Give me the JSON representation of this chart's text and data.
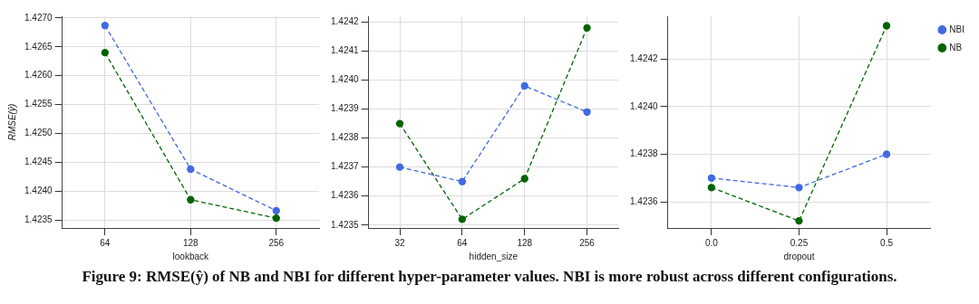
{
  "chart_data": [
    {
      "type": "line",
      "xlabel": "lookback",
      "ylabel": "RMSE(ŷ)",
      "categories": [
        "64",
        "128",
        "256"
      ],
      "ylim": [
        1.42336,
        1.42703
      ],
      "yticks": [
        1.4235,
        {
          "value": 1.424,
          "label": "1.4240"
        },
        1.4245,
        {
          "value": 1.425,
          "label": "1.4250"
        },
        1.4255,
        {
          "value": 1.426,
          "label": "1.4260"
        },
        1.4265,
        {
          "value": 1.427,
          "label": "1.4270"
        }
      ],
      "grid": true,
      "marker": "circle",
      "line_style": "dashed",
      "legend": false,
      "series": [
        {
          "color": "#4169e1",
          "values": [
            1.42687,
            1.42438,
            1.42366
          ]
        },
        {
          "color": "#006400",
          "values": [
            1.4264,
            1.42385,
            1.42353
          ]
        }
      ],
      "annotations": [
        "Figure 9: RMSE(ŷ) of NB and NBI for different hyper-parameter values. NBI is more robust across different configurations."
      ]
    },
    {
      "type": "line",
      "xlabel": "hidden_size",
      "categories": [
        "32",
        "64",
        "128",
        "256"
      ],
      "ylim": [
        1.42349,
        1.42422
      ],
      "yticks": [
        1.4235,
        1.4236,
        1.4237,
        1.4238,
        1.4239,
        {
          "value": 1.424,
          "label": "1.4240"
        },
        1.4241,
        1.4242
      ],
      "grid": true,
      "marker": "circle",
      "line_style": "dashed",
      "legend": false,
      "series": [
        {
          "color": "#4169e1",
          "values": [
            1.4237,
            1.42365,
            1.42398,
            1.42389
          ]
        },
        {
          "color": "#006400",
          "values": [
            1.42385,
            1.42352,
            1.42366,
            1.42418
          ]
        }
      ]
    },
    {
      "type": "line",
      "xlabel": "dropout",
      "categories": [
        "0.0",
        "0.25",
        "0.5"
      ],
      "ylim": [
        1.42349,
        1.42438
      ],
      "yticks": [
        1.4236,
        1.4238,
        {
          "value": 1.424,
          "label": "1.4240"
        },
        1.4242
      ],
      "grid": true,
      "marker": "circle",
      "line_style": "dashed",
      "legend": "top right",
      "series": [
        {
          "name": "NBI",
          "color": "#4169e1",
          "values": [
            1.4237,
            1.42366,
            1.4238
          ]
        },
        {
          "name": "NB",
          "color": "#006400",
          "values": [
            1.42366,
            1.42352,
            1.42434
          ]
        }
      ]
    }
  ]
}
